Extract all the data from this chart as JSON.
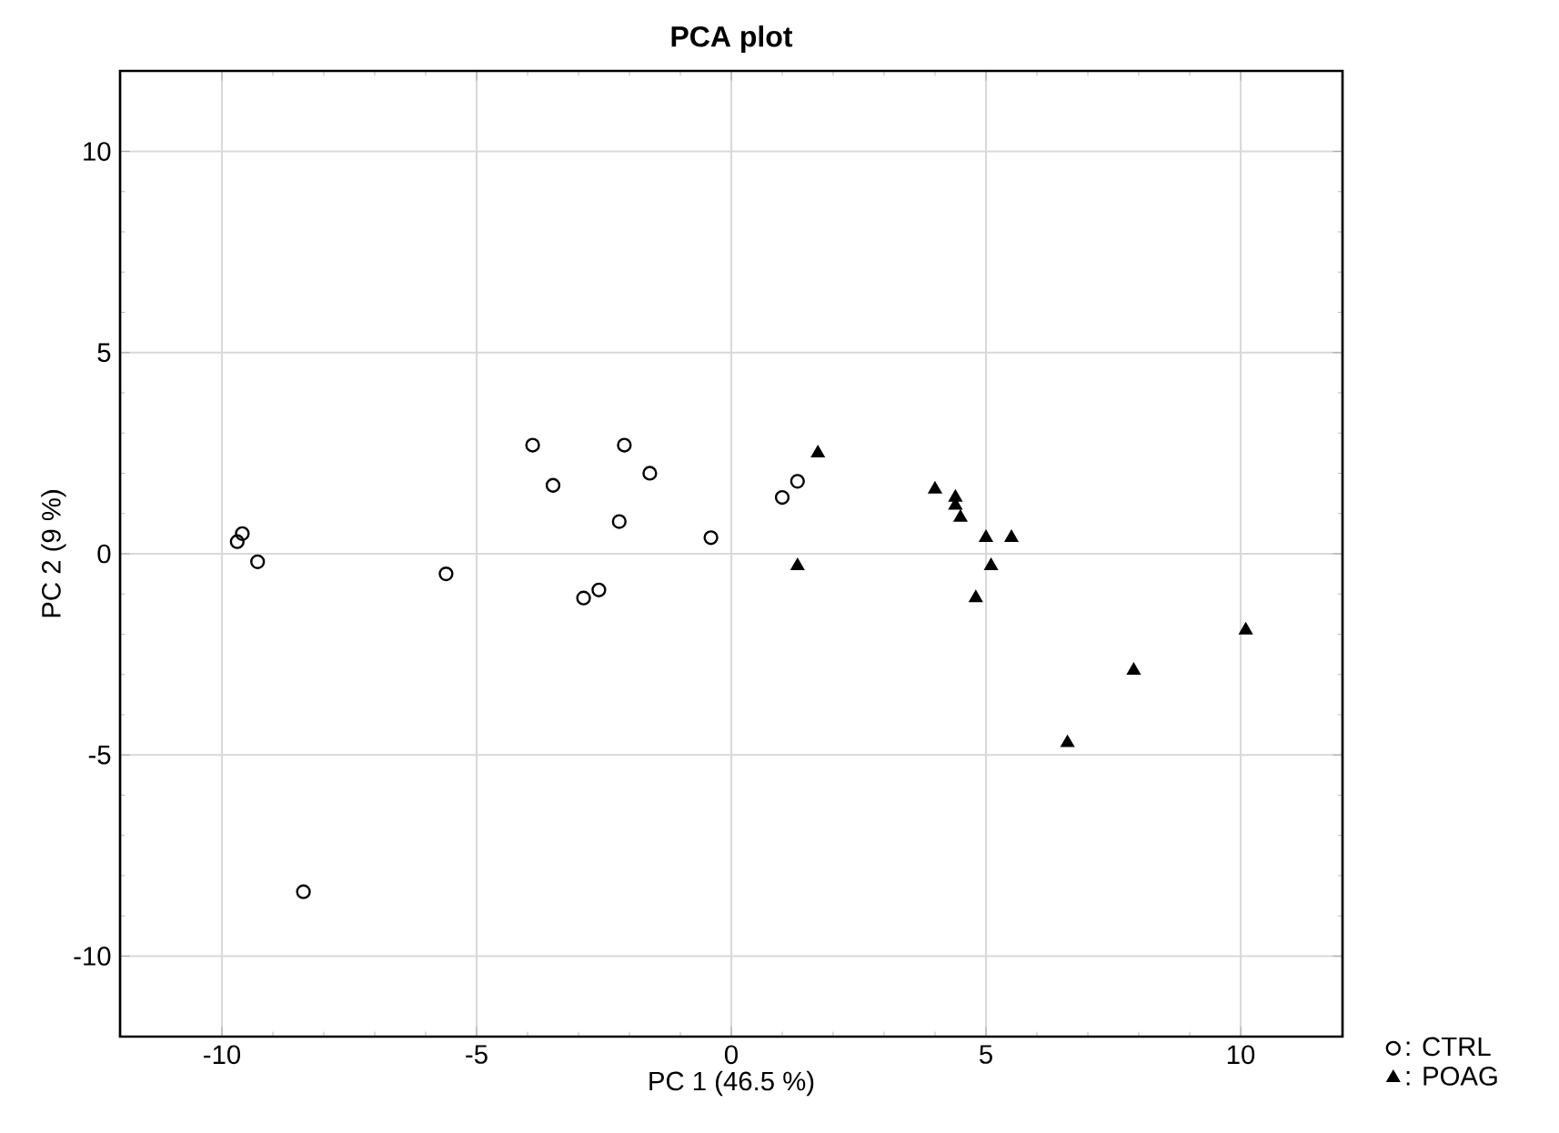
{
  "chart_data": {
    "type": "scatter",
    "title": "PCA plot",
    "xlabel": "PC 1 (46.5 %)",
    "ylabel": "PC 2 (9 %)",
    "xlim": [
      -12,
      12
    ],
    "ylim": [
      -12,
      12
    ],
    "xticks": [
      -10,
      -5,
      0,
      5,
      10
    ],
    "yticks": [
      -10,
      -5,
      0,
      5,
      10
    ],
    "grid": true,
    "legend": "bottom right",
    "series": [
      {
        "name": ": CTRL",
        "color": "#000000",
        "marker": "circle",
        "x": [
          -9.6,
          -9.7,
          -9.3,
          -5.6,
          -3.9,
          -3.5,
          -2.1,
          -1.6,
          -2.2,
          -0.4,
          -2.6,
          -2.9,
          1.0,
          1.3,
          -8.4
        ],
        "values": [
          0.5,
          0.3,
          -0.2,
          -0.5,
          2.7,
          1.7,
          2.7,
          2.0,
          0.8,
          0.4,
          -0.9,
          -1.1,
          1.4,
          1.8,
          -8.4
        ]
      },
      {
        "name": ": POAG",
        "color": "#000000",
        "marker": "triangle",
        "x": [
          1.7,
          1.3,
          4.0,
          4.4,
          4.4,
          4.5,
          5.0,
          5.5,
          5.1,
          4.8,
          7.9,
          10.1,
          6.6
        ],
        "values": [
          2.5,
          -0.3,
          1.6,
          1.4,
          1.2,
          0.9,
          0.4,
          0.4,
          -0.3,
          -1.1,
          -2.9,
          -1.9,
          -4.7
        ]
      }
    ]
  }
}
